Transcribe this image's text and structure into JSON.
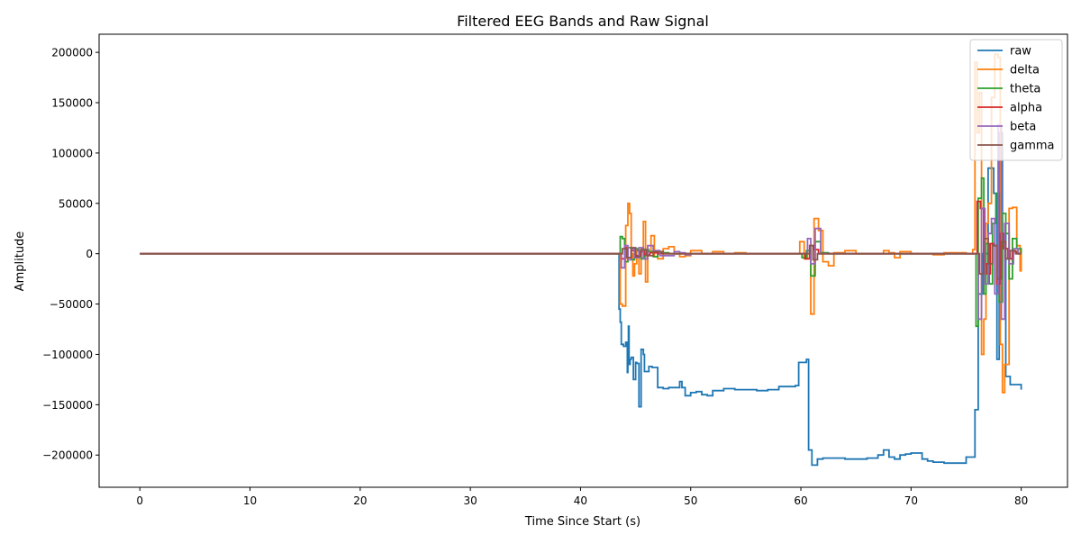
{
  "chart_data": {
    "type": "line",
    "title": "Filtered EEG Bands and Raw Signal",
    "xlabel": "Time Since Start (s)",
    "ylabel": "Amplitude",
    "xlim": [
      -3.7,
      84.2
    ],
    "ylim": [
      -232000,
      218000
    ],
    "xticks": [
      0,
      10,
      20,
      30,
      40,
      50,
      60,
      70,
      80
    ],
    "xtick_labels": [
      "0",
      "10",
      "20",
      "30",
      "40",
      "50",
      "60",
      "70",
      "80"
    ],
    "yticks": [
      -200000,
      -150000,
      -100000,
      -50000,
      0,
      50000,
      100000,
      150000,
      200000
    ],
    "ytick_labels": [
      "−200000",
      "−150000",
      "−100000",
      "−50000",
      "0",
      "50000",
      "100000",
      "150000",
      "200000"
    ],
    "grid": false,
    "legend_position": "upper right",
    "step": true,
    "series": [
      {
        "name": "raw",
        "color": "#1f77b4",
        "x": [
          0,
          43.4,
          43.5,
          43.6,
          43.7,
          43.9,
          44.1,
          44.25,
          44.3,
          44.35,
          44.4,
          44.5,
          44.6,
          44.8,
          45.0,
          45.1,
          45.3,
          45.5,
          45.7,
          45.8,
          46.2,
          46.5,
          47.0,
          47.5,
          48.0,
          48.5,
          49.0,
          49.2,
          49.5,
          50.0,
          50.5,
          51.0,
          51.5,
          52.0,
          53.0,
          54.0,
          55.0,
          56.0,
          57.0,
          58.0,
          59.5,
          59.8,
          60.5,
          60.7,
          61.0,
          61.5,
          62.0,
          63.0,
          64.0,
          65.0,
          66.0,
          67.0,
          67.5,
          68.0,
          68.5,
          69.0,
          69.5,
          70.0,
          71.0,
          71.5,
          72.0,
          73.0,
          74.0,
          75.0,
          75.8,
          76.1,
          76.5,
          77.0,
          77.5,
          77.8,
          78.0,
          78.3,
          78.6,
          79.0,
          80.0
        ],
        "y": [
          0,
          0,
          -55000,
          -68000,
          -90000,
          -92000,
          -88000,
          -118000,
          -100000,
          -72000,
          -110000,
          -105000,
          -103000,
          -125000,
          -108000,
          -109000,
          -152000,
          -95000,
          -100000,
          -117000,
          -112000,
          -113000,
          -133000,
          -134000,
          -133000,
          -133000,
          -127000,
          -133000,
          -141000,
          -138000,
          -137000,
          -140000,
          -141000,
          -136000,
          -134000,
          -135000,
          -135000,
          -136000,
          -135000,
          -132000,
          -131000,
          -108000,
          -105000,
          -195000,
          -210000,
          -204000,
          -203000,
          -203000,
          -204000,
          -204000,
          -203000,
          -200000,
          -195000,
          -202000,
          -204000,
          -200000,
          -199000,
          -198000,
          -204000,
          -206000,
          -207000,
          -208000,
          -208000,
          -202000,
          -155000,
          -40000,
          0,
          85000,
          60000,
          -105000,
          120000,
          20000,
          -122000,
          -130000,
          -135000
        ]
      },
      {
        "name": "delta",
        "color": "#ff7f0e",
        "x": [
          0,
          43.4,
          43.6,
          43.8,
          44.1,
          44.3,
          44.45,
          44.6,
          44.75,
          44.9,
          45.1,
          45.3,
          45.5,
          45.7,
          45.9,
          46.1,
          46.4,
          46.7,
          47.0,
          47.5,
          48.0,
          48.5,
          49.0,
          49.5,
          50.0,
          51.0,
          52.0,
          53.0,
          54.0,
          55.0,
          57.0,
          59.5,
          59.9,
          60.3,
          60.6,
          60.9,
          61.2,
          61.6,
          62.0,
          62.5,
          63.0,
          64.0,
          65.0,
          67.0,
          67.5,
          68.0,
          68.5,
          69.0,
          70.0,
          71.0,
          72.0,
          73.0,
          75.0,
          75.6,
          75.8,
          76.0,
          76.2,
          76.4,
          76.6,
          76.8,
          77.0,
          77.3,
          77.6,
          77.9,
          78.1,
          78.3,
          78.5,
          78.9,
          79.2,
          79.6,
          79.9,
          80.0
        ],
        "y": [
          0,
          0,
          -50000,
          -52000,
          28000,
          50000,
          40000,
          0,
          -22000,
          -10000,
          3000,
          -20000,
          5000,
          32000,
          -28000,
          2000,
          18000,
          -3000,
          -5000,
          5000,
          7000,
          0,
          -3000,
          -2000,
          3000,
          0,
          2000,
          0,
          1000,
          0,
          0,
          0,
          12000,
          -5000,
          0,
          -60000,
          35000,
          23000,
          -8000,
          -12000,
          1000,
          3000,
          0,
          0,
          3000,
          1000,
          -4000,
          2000,
          0,
          0,
          -1000,
          1000,
          0,
          4000,
          190000,
          120000,
          160000,
          -100000,
          -65000,
          30000,
          50000,
          155000,
          198000,
          195000,
          -90000,
          -138000,
          -110000,
          45000,
          46000,
          8000,
          -17000,
          0
        ]
      },
      {
        "name": "theta",
        "color": "#2ca02c",
        "x": [
          0,
          43.4,
          43.6,
          43.8,
          44.0,
          44.3,
          44.6,
          44.9,
          45.2,
          45.5,
          45.8,
          46.2,
          46.6,
          47.0,
          48.0,
          50.0,
          55.0,
          59.7,
          60.1,
          60.5,
          60.9,
          61.3,
          61.8,
          62.5,
          65.0,
          70.0,
          75.5,
          75.9,
          76.1,
          76.4,
          76.6,
          76.8,
          77.1,
          77.4,
          77.7,
          78.0,
          78.3,
          78.6,
          78.9,
          79.2,
          79.6,
          80.0
        ],
        "y": [
          0,
          0,
          17000,
          15000,
          -8000,
          6000,
          -6000,
          5000,
          3000,
          -5000,
          4000,
          2000,
          -3000,
          1000,
          0,
          0,
          0,
          0,
          -4000,
          3000,
          -22000,
          12000,
          1000,
          0,
          0,
          0,
          0,
          -72000,
          55000,
          75000,
          -40000,
          10000,
          -30000,
          30000,
          60000,
          -48000,
          40000,
          20000,
          -25000,
          15000,
          5000,
          0
        ]
      },
      {
        "name": "alpha",
        "color": "#d62728",
        "x": [
          0,
          43.4,
          43.7,
          44.0,
          44.3,
          44.6,
          45.0,
          45.4,
          45.8,
          46.3,
          47.0,
          50.0,
          60.0,
          60.4,
          60.8,
          61.2,
          61.6,
          62.5,
          70.0,
          75.8,
          76.0,
          76.3,
          76.6,
          76.9,
          77.2,
          77.5,
          77.8,
          78.1,
          78.4,
          78.8,
          79.2,
          79.6,
          80.0
        ],
        "y": [
          0,
          0,
          -5000,
          6000,
          -4000,
          3000,
          -2000,
          2000,
          -1000,
          1000,
          0,
          0,
          0,
          -5000,
          8000,
          4000,
          0,
          0,
          0,
          0,
          52000,
          45000,
          -10000,
          -20000,
          10000,
          8000,
          -30000,
          20000,
          5000,
          -5000,
          2000,
          0,
          0
        ]
      },
      {
        "name": "beta",
        "color": "#9467bd",
        "x": [
          0,
          43.4,
          43.7,
          44.0,
          44.3,
          44.6,
          44.9,
          45.3,
          45.7,
          46.1,
          46.6,
          47.2,
          48.5,
          49.0,
          49.5,
          50.0,
          55.0,
          60.3,
          60.6,
          60.9,
          61.3,
          61.8,
          70.0,
          75.9,
          76.1,
          76.4,
          76.7,
          77.0,
          77.3,
          77.6,
          77.9,
          78.2,
          78.5,
          78.9,
          79.3,
          79.7,
          80.0
        ],
        "y": [
          0,
          0,
          -14000,
          8000,
          -6000,
          5000,
          -4000,
          6000,
          -5000,
          8000,
          3000,
          -2000,
          2000,
          1000,
          -1000,
          0,
          0,
          0,
          15000,
          -10000,
          25000,
          0,
          0,
          0,
          -65000,
          45000,
          -30000,
          20000,
          35000,
          -40000,
          128000,
          -65000,
          30000,
          -10000,
          5000,
          0,
          0
        ]
      },
      {
        "name": "gamma",
        "color": "#8c564b",
        "x": [
          0,
          43.4,
          43.8,
          44.2,
          44.6,
          45.0,
          45.5,
          46.0,
          46.6,
          47.5,
          50.0,
          60.5,
          60.8,
          61.1,
          61.5,
          70.0,
          75.9,
          76.2,
          76.6,
          77.0,
          77.4,
          77.8,
          78.2,
          78.6,
          79.0,
          79.5,
          80.0
        ],
        "y": [
          0,
          0,
          5000,
          -4000,
          6000,
          -3000,
          4000,
          -2000,
          2000,
          0,
          0,
          0,
          8000,
          -6000,
          0,
          0,
          0,
          -20000,
          15000,
          -10000,
          8000,
          -25000,
          12000,
          -5000,
          3000,
          0,
          0
        ]
      }
    ]
  }
}
